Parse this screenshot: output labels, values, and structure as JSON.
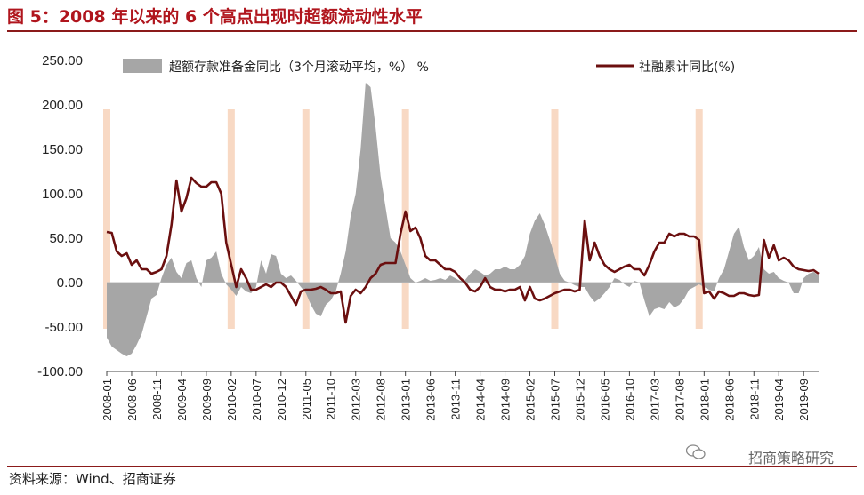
{
  "figure_title": "图 5：2008 年以来的 6 个高点出现时超额流动性水平",
  "source": "资料来源：Wind、招商证券",
  "watermark": "招商策略研究",
  "colors": {
    "title": "#b0151d",
    "area": "#a6a6a6",
    "line": "#6b0f0f",
    "highlight": "#f8d9c4",
    "rule": "#8b1a1a"
  },
  "chart_data": {
    "type": "area+line",
    "x_start": "2008-01",
    "x_end": "2019-12",
    "ylim": [
      -100,
      250
    ],
    "yticks": [
      "250.00",
      "200.00",
      "150.00",
      "100.00",
      "50.00",
      "0.00",
      "-50.00",
      "-100.00"
    ],
    "xticks": [
      "2008-01",
      "2008-06",
      "2008-11",
      "2009-04",
      "2009-09",
      "2010-02",
      "2010-07",
      "2010-12",
      "2011-05",
      "2011-10",
      "2012-03",
      "2012-08",
      "2013-01",
      "2013-06",
      "2013-11",
      "2014-04",
      "2014-09",
      "2015-02",
      "2015-07",
      "2015-12",
      "2016-05",
      "2016-10",
      "2017-03",
      "2017-08",
      "2018-01",
      "2018-06",
      "2018-11",
      "2019-04",
      "2019-09"
    ],
    "legend_position": "top",
    "series": [
      {
        "name": "超额存款准备金同比（3个月滚动平均，%） %",
        "kind": "area",
        "points": [
          [
            "2008-01",
            -62
          ],
          [
            "2008-02",
            -72
          ],
          [
            "2008-03",
            -76
          ],
          [
            "2008-04",
            -80
          ],
          [
            "2008-05",
            -83
          ],
          [
            "2008-06",
            -80
          ],
          [
            "2008-07",
            -70
          ],
          [
            "2008-08",
            -58
          ],
          [
            "2008-09",
            -38
          ],
          [
            "2008-10",
            -18
          ],
          [
            "2008-11",
            -14
          ],
          [
            "2008-12",
            5
          ],
          [
            "2009-01",
            20
          ],
          [
            "2009-02",
            28
          ],
          [
            "2009-03",
            12
          ],
          [
            "2009-04",
            5
          ],
          [
            "2009-05",
            22
          ],
          [
            "2009-06",
            25
          ],
          [
            "2009-07",
            5
          ],
          [
            "2009-08",
            -5
          ],
          [
            "2009-09",
            25
          ],
          [
            "2009-10",
            28
          ],
          [
            "2009-11",
            35
          ],
          [
            "2009-12",
            10
          ],
          [
            "2010-01",
            -2
          ],
          [
            "2010-02",
            -8
          ],
          [
            "2010-03",
            -15
          ],
          [
            "2010-04",
            -5
          ],
          [
            "2010-05",
            -10
          ],
          [
            "2010-06",
            -12
          ],
          [
            "2010-07",
            -5
          ],
          [
            "2010-08",
            25
          ],
          [
            "2010-09",
            10
          ],
          [
            "2010-10",
            32
          ],
          [
            "2010-11",
            30
          ],
          [
            "2010-12",
            10
          ],
          [
            "2011-01",
            5
          ],
          [
            "2011-02",
            8
          ],
          [
            "2011-03",
            2
          ],
          [
            "2011-04",
            -5
          ],
          [
            "2011-05",
            -12
          ],
          [
            "2011-06",
            -25
          ],
          [
            "2011-07",
            -35
          ],
          [
            "2011-08",
            -38
          ],
          [
            "2011-09",
            -25
          ],
          [
            "2011-10",
            -20
          ],
          [
            "2011-11",
            -10
          ],
          [
            "2011-12",
            10
          ],
          [
            "2012-01",
            35
          ],
          [
            "2012-02",
            75
          ],
          [
            "2012-03",
            100
          ],
          [
            "2012-04",
            150
          ],
          [
            "2012-05",
            225
          ],
          [
            "2012-06",
            220
          ],
          [
            "2012-07",
            175
          ],
          [
            "2012-08",
            120
          ],
          [
            "2012-09",
            85
          ],
          [
            "2012-10",
            50
          ],
          [
            "2012-11",
            45
          ],
          [
            "2012-12",
            35
          ],
          [
            "2013-01",
            20
          ],
          [
            "2013-02",
            5
          ],
          [
            "2013-03",
            0
          ],
          [
            "2013-04",
            2
          ],
          [
            "2013-05",
            5
          ],
          [
            "2013-06",
            2
          ],
          [
            "2013-07",
            3
          ],
          [
            "2013-08",
            5
          ],
          [
            "2013-09",
            3
          ],
          [
            "2013-10",
            8
          ],
          [
            "2013-11",
            5
          ],
          [
            "2013-12",
            2
          ],
          [
            "2014-01",
            3
          ],
          [
            "2014-02",
            10
          ],
          [
            "2014-03",
            15
          ],
          [
            "2014-04",
            12
          ],
          [
            "2014-05",
            8
          ],
          [
            "2014-06",
            10
          ],
          [
            "2014-07",
            15
          ],
          [
            "2014-08",
            15
          ],
          [
            "2014-09",
            18
          ],
          [
            "2014-10",
            15
          ],
          [
            "2014-11",
            15
          ],
          [
            "2014-12",
            20
          ],
          [
            "2015-01",
            30
          ],
          [
            "2015-02",
            55
          ],
          [
            "2015-03",
            70
          ],
          [
            "2015-04",
            78
          ],
          [
            "2015-05",
            65
          ],
          [
            "2015-06",
            48
          ],
          [
            "2015-07",
            30
          ],
          [
            "2015-08",
            10
          ],
          [
            "2015-09",
            2
          ],
          [
            "2015-10",
            0
          ],
          [
            "2015-11",
            -3
          ],
          [
            "2015-12",
            -5
          ],
          [
            "2016-01",
            -5
          ],
          [
            "2016-02",
            -15
          ],
          [
            "2016-03",
            -22
          ],
          [
            "2016-04",
            -18
          ],
          [
            "2016-05",
            -12
          ],
          [
            "2016-06",
            -5
          ],
          [
            "2016-07",
            5
          ],
          [
            "2016-08",
            3
          ],
          [
            "2016-09",
            -2
          ],
          [
            "2016-10",
            -5
          ],
          [
            "2016-11",
            2
          ],
          [
            "2016-12",
            0
          ],
          [
            "2017-01",
            -20
          ],
          [
            "2017-02",
            -38
          ],
          [
            "2017-03",
            -30
          ],
          [
            "2017-04",
            -28
          ],
          [
            "2017-05",
            -30
          ],
          [
            "2017-06",
            -22
          ],
          [
            "2017-07",
            -28
          ],
          [
            "2017-08",
            -25
          ],
          [
            "2017-09",
            -18
          ],
          [
            "2017-10",
            -8
          ],
          [
            "2017-11",
            -5
          ],
          [
            "2017-12",
            -2
          ],
          [
            "2018-01",
            -5
          ],
          [
            "2018-02",
            -8
          ],
          [
            "2018-03",
            -10
          ],
          [
            "2018-04",
            5
          ],
          [
            "2018-05",
            15
          ],
          [
            "2018-06",
            35
          ],
          [
            "2018-07",
            55
          ],
          [
            "2018-08",
            63
          ],
          [
            "2018-09",
            40
          ],
          [
            "2018-10",
            25
          ],
          [
            "2018-11",
            30
          ],
          [
            "2018-12",
            40
          ],
          [
            "2019-01",
            15
          ],
          [
            "2019-02",
            10
          ],
          [
            "2019-03",
            12
          ],
          [
            "2019-04",
            5
          ],
          [
            "2019-05",
            2
          ],
          [
            "2019-06",
            0
          ],
          [
            "2019-07",
            -12
          ],
          [
            "2019-08",
            -12
          ],
          [
            "2019-09",
            5
          ],
          [
            "2019-10",
            10
          ],
          [
            "2019-11",
            12
          ],
          [
            "2019-12",
            8
          ]
        ]
      },
      {
        "name": "社融累计同比(%)",
        "kind": "line",
        "points": [
          [
            "2008-01",
            57
          ],
          [
            "2008-02",
            56
          ],
          [
            "2008-03",
            35
          ],
          [
            "2008-04",
            30
          ],
          [
            "2008-05",
            33
          ],
          [
            "2008-06",
            20
          ],
          [
            "2008-07",
            25
          ],
          [
            "2008-08",
            15
          ],
          [
            "2008-09",
            15
          ],
          [
            "2008-10",
            10
          ],
          [
            "2008-11",
            12
          ],
          [
            "2008-12",
            15
          ],
          [
            "2009-01",
            30
          ],
          [
            "2009-02",
            65
          ],
          [
            "2009-03",
            115
          ],
          [
            "2009-04",
            80
          ],
          [
            "2009-05",
            95
          ],
          [
            "2009-06",
            118
          ],
          [
            "2009-07",
            112
          ],
          [
            "2009-08",
            108
          ],
          [
            "2009-09",
            108
          ],
          [
            "2009-10",
            113
          ],
          [
            "2009-11",
            113
          ],
          [
            "2009-12",
            100
          ],
          [
            "2010-01",
            45
          ],
          [
            "2010-02",
            20
          ],
          [
            "2010-03",
            -5
          ],
          [
            "2010-04",
            15
          ],
          [
            "2010-05",
            5
          ],
          [
            "2010-06",
            -8
          ],
          [
            "2010-07",
            -8
          ],
          [
            "2010-08",
            -5
          ],
          [
            "2010-09",
            -2
          ],
          [
            "2010-10",
            -5
          ],
          [
            "2010-11",
            0
          ],
          [
            "2010-12",
            0
          ],
          [
            "2011-01",
            -5
          ],
          [
            "2011-02",
            -15
          ],
          [
            "2011-03",
            -25
          ],
          [
            "2011-04",
            -10
          ],
          [
            "2011-05",
            -8
          ],
          [
            "2011-06",
            -8
          ],
          [
            "2011-07",
            -7
          ],
          [
            "2011-08",
            -5
          ],
          [
            "2011-09",
            -8
          ],
          [
            "2011-10",
            -12
          ],
          [
            "2011-11",
            -12
          ],
          [
            "2011-12",
            -10
          ],
          [
            "2012-01",
            -45
          ],
          [
            "2012-02",
            -15
          ],
          [
            "2012-03",
            -8
          ],
          [
            "2012-04",
            -12
          ],
          [
            "2012-05",
            -5
          ],
          [
            "2012-06",
            5
          ],
          [
            "2012-07",
            10
          ],
          [
            "2012-08",
            20
          ],
          [
            "2012-09",
            22
          ],
          [
            "2012-10",
            22
          ],
          [
            "2012-11",
            22
          ],
          [
            "2012-12",
            55
          ],
          [
            "2013-01",
            80
          ],
          [
            "2013-02",
            58
          ],
          [
            "2013-03",
            62
          ],
          [
            "2013-04",
            50
          ],
          [
            "2013-05",
            30
          ],
          [
            "2013-06",
            25
          ],
          [
            "2013-07",
            25
          ],
          [
            "2013-08",
            20
          ],
          [
            "2013-09",
            15
          ],
          [
            "2013-10",
            15
          ],
          [
            "2013-11",
            12
          ],
          [
            "2013-12",
            5
          ],
          [
            "2014-01",
            0
          ],
          [
            "2014-02",
            -8
          ],
          [
            "2014-03",
            -10
          ],
          [
            "2014-04",
            -5
          ],
          [
            "2014-05",
            5
          ],
          [
            "2014-06",
            -5
          ],
          [
            "2014-07",
            -8
          ],
          [
            "2014-08",
            -8
          ],
          [
            "2014-09",
            -10
          ],
          [
            "2014-10",
            -8
          ],
          [
            "2014-11",
            -8
          ],
          [
            "2014-12",
            -5
          ],
          [
            "2015-01",
            -20
          ],
          [
            "2015-02",
            -5
          ],
          [
            "2015-03",
            -18
          ],
          [
            "2015-04",
            -20
          ],
          [
            "2015-05",
            -18
          ],
          [
            "2015-06",
            -15
          ],
          [
            "2015-07",
            -12
          ],
          [
            "2015-08",
            -10
          ],
          [
            "2015-09",
            -8
          ],
          [
            "2015-10",
            -8
          ],
          [
            "2015-11",
            -10
          ],
          [
            "2015-12",
            -8
          ],
          [
            "2016-01",
            70
          ],
          [
            "2016-02",
            25
          ],
          [
            "2016-03",
            45
          ],
          [
            "2016-04",
            30
          ],
          [
            "2016-05",
            20
          ],
          [
            "2016-06",
            15
          ],
          [
            "2016-07",
            12
          ],
          [
            "2016-08",
            15
          ],
          [
            "2016-09",
            18
          ],
          [
            "2016-10",
            20
          ],
          [
            "2016-11",
            15
          ],
          [
            "2016-12",
            15
          ],
          [
            "2017-01",
            8
          ],
          [
            "2017-02",
            20
          ],
          [
            "2017-03",
            35
          ],
          [
            "2017-04",
            45
          ],
          [
            "2017-05",
            45
          ],
          [
            "2017-06",
            55
          ],
          [
            "2017-07",
            52
          ],
          [
            "2017-08",
            55
          ],
          [
            "2017-09",
            55
          ],
          [
            "2017-10",
            52
          ],
          [
            "2017-11",
            52
          ],
          [
            "2017-12",
            48
          ],
          [
            "2018-01",
            -12
          ],
          [
            "2018-02",
            -10
          ],
          [
            "2018-03",
            -18
          ],
          [
            "2018-04",
            -10
          ],
          [
            "2018-05",
            -12
          ],
          [
            "2018-06",
            -15
          ],
          [
            "2018-07",
            -15
          ],
          [
            "2018-08",
            -12
          ],
          [
            "2018-09",
            -12
          ],
          [
            "2018-10",
            -14
          ],
          [
            "2018-11",
            -15
          ],
          [
            "2018-12",
            -14
          ],
          [
            "2019-01",
            48
          ],
          [
            "2019-02",
            28
          ],
          [
            "2019-03",
            42
          ],
          [
            "2019-04",
            25
          ],
          [
            "2019-05",
            28
          ],
          [
            "2019-06",
            25
          ],
          [
            "2019-07",
            18
          ],
          [
            "2019-08",
            15
          ],
          [
            "2019-09",
            14
          ],
          [
            "2019-10",
            13
          ],
          [
            "2019-11",
            14
          ],
          [
            "2019-12",
            10
          ]
        ]
      }
    ],
    "highlight_periods": [
      "2008-01",
      "2010-02",
      "2011-05",
      "2013-01",
      "2015-07",
      "2017-12"
    ]
  }
}
